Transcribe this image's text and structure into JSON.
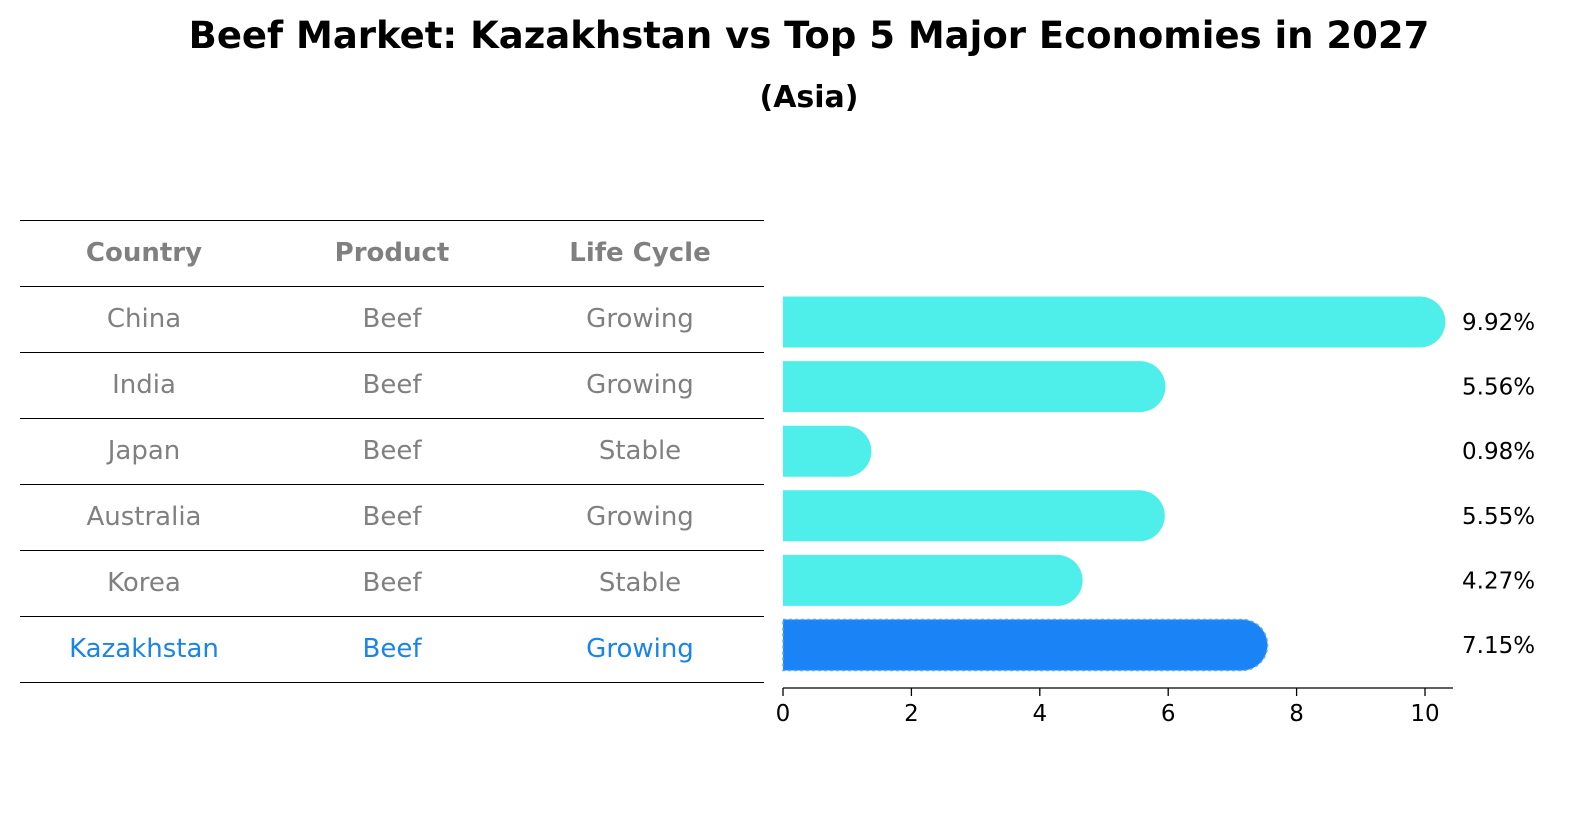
{
  "chart_data": {
    "type": "bar",
    "title": "Beef Market: Kazakhstan vs Top 5 Major Economies in 2027",
    "subtitle": "(Asia)",
    "table": {
      "headers": [
        "Country",
        "Product",
        "Life Cycle"
      ],
      "rows": [
        [
          "China",
          "Beef",
          "Growing"
        ],
        [
          "India",
          "Beef",
          "Growing"
        ],
        [
          "Japan",
          "Beef",
          "Stable"
        ],
        [
          "Australia",
          "Beef",
          "Growing"
        ],
        [
          "Korea",
          "Beef",
          "Stable"
        ],
        [
          "Kazakhstan",
          "Beef",
          "Growing"
        ]
      ],
      "highlight_row": 5
    },
    "categories": [
      "China",
      "India",
      "Japan",
      "Australia",
      "Korea",
      "Kazakhstan"
    ],
    "values": [
      9.92,
      5.56,
      0.98,
      5.55,
      4.27,
      7.15
    ],
    "value_labels": [
      "9.92%",
      "5.56%",
      "0.98%",
      "5.55%",
      "4.27%",
      "7.15%"
    ],
    "xlim": [
      0,
      10.4
    ],
    "xticks": [
      0,
      2,
      4,
      6,
      8,
      10
    ],
    "orientation": "horizontal",
    "grid": false,
    "colors": {
      "bar": "#4eeeea",
      "highlight": "#1a84f7",
      "table_text": "#808080",
      "table_highlight_text": "#1a84e8"
    }
  }
}
